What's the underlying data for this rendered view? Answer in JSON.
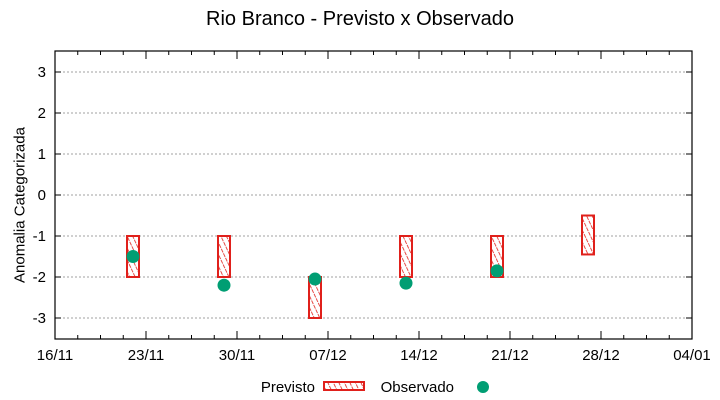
{
  "chart_data": {
    "type": "scatter",
    "title": "Rio Branco - Previsto x Observado",
    "xlabel": "",
    "ylabel": "Anomalia Categorizada",
    "ylim": [
      -3.5,
      3.5
    ],
    "yticks": [
      3,
      2,
      1,
      0,
      -1,
      -2,
      -3
    ],
    "xticks": [
      "16/11",
      "23/11",
      "30/11",
      "07/12",
      "14/12",
      "21/12",
      "28/12",
      "04/01"
    ],
    "grid": "horizontal dotted",
    "legend_position": "bottom center",
    "series": [
      {
        "name": "Previsto",
        "kind": "range-box",
        "color": "#e0201b",
        "points": [
          {
            "x": "22/11",
            "low": -2.0,
            "high": -1.0
          },
          {
            "x": "29/11",
            "low": -2.0,
            "high": -1.0
          },
          {
            "x": "06/12",
            "low": -3.0,
            "high": -2.0
          },
          {
            "x": "13/12",
            "low": -2.0,
            "high": -1.0
          },
          {
            "x": "20/12",
            "low": -2.0,
            "high": -1.0
          },
          {
            "x": "27/12",
            "low": -1.45,
            "high": -0.5
          }
        ]
      },
      {
        "name": "Observado",
        "kind": "point",
        "color": "#009e73",
        "points": [
          {
            "x": "22/11",
            "y": -1.5
          },
          {
            "x": "29/11",
            "y": -2.2
          },
          {
            "x": "06/12",
            "y": -2.05
          },
          {
            "x": "13/12",
            "y": -2.15
          },
          {
            "x": "20/12",
            "y": -1.85
          }
        ]
      }
    ]
  },
  "legend": {
    "previsto": "Previsto",
    "observado": "Observado"
  }
}
